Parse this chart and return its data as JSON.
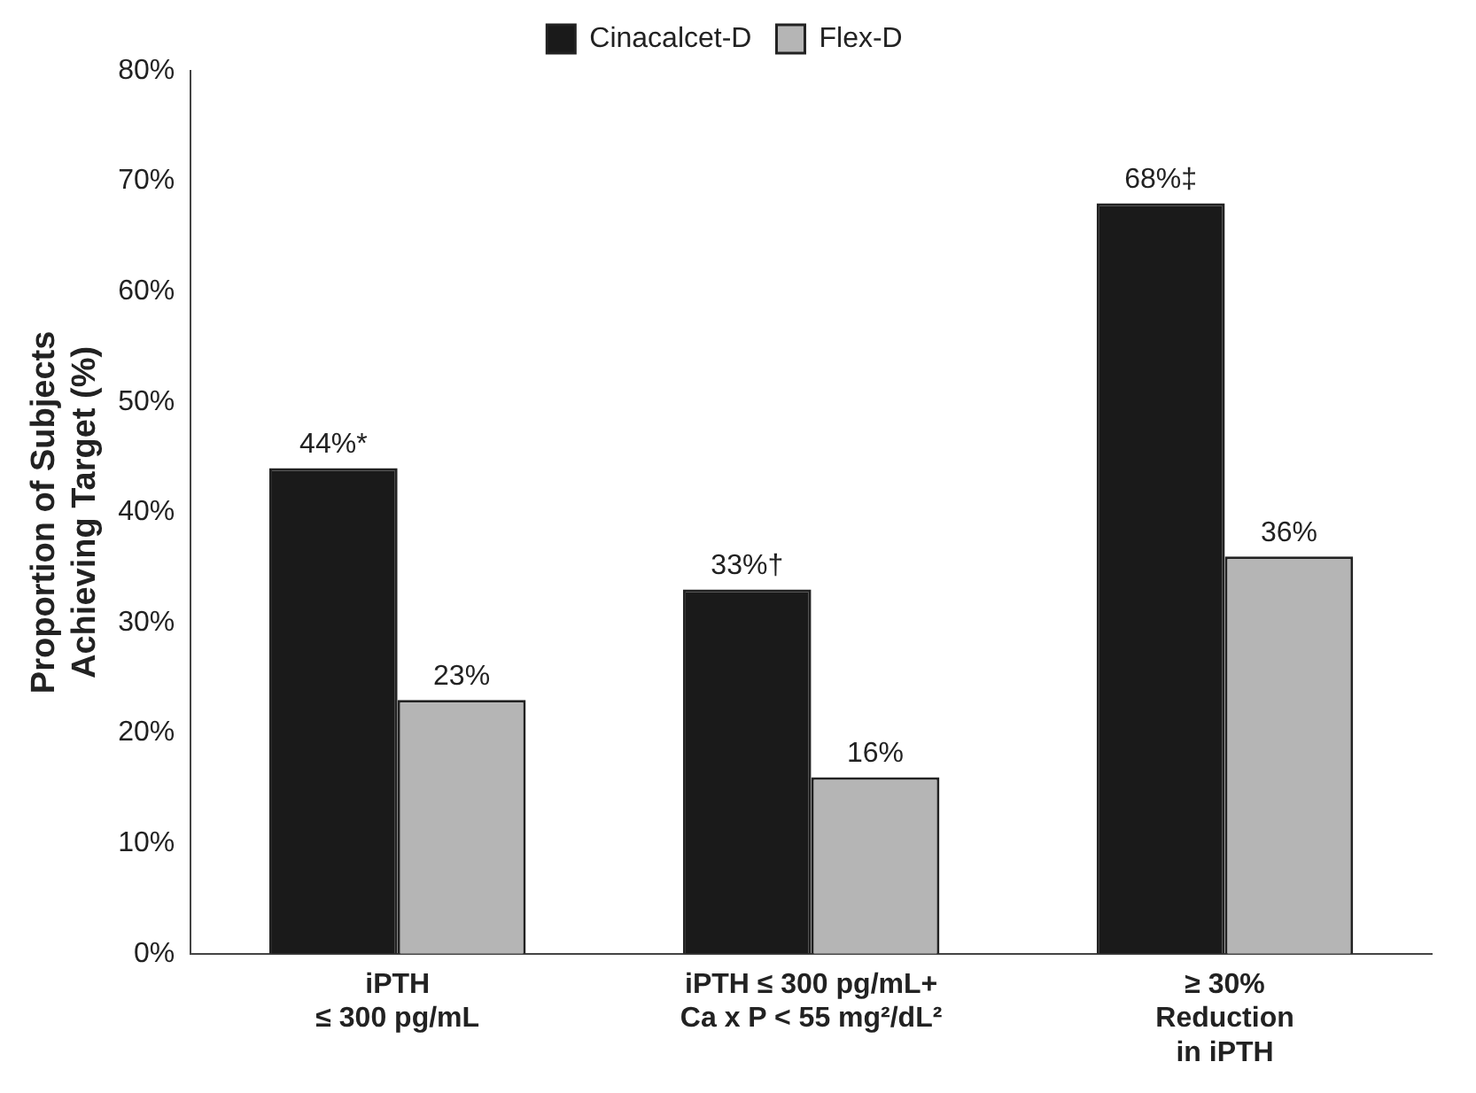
{
  "chart_data": {
    "type": "bar",
    "ylabel": "Proportion of Subjects\nAchieving Target (%)",
    "categories": [
      "iPTH\n≤ 300 pg/mL",
      "iPTH ≤ 300 pg/mL+\nCa x P < 55 mg²/dL²",
      "≥ 30%\nReduction\nin iPTH"
    ],
    "series": [
      {
        "name": "Cinacalcet-D",
        "color": "#1a1a1a",
        "values": [
          44,
          33,
          68
        ],
        "value_labels": [
          "44%*",
          "33%†",
          "68%‡"
        ]
      },
      {
        "name": "Flex-D",
        "color": "#b5b5b5",
        "values": [
          23,
          16,
          36
        ],
        "value_labels": [
          "23%",
          "16%",
          "36%"
        ]
      }
    ],
    "ylim": [
      0,
      80
    ],
    "yticks": [
      {
        "value": 0,
        "label": "0%"
      },
      {
        "value": 10,
        "label": "10%"
      },
      {
        "value": 20,
        "label": "20%"
      },
      {
        "value": 30,
        "label": "30%"
      },
      {
        "value": 40,
        "label": "40%"
      },
      {
        "value": 50,
        "label": "50%"
      },
      {
        "value": 60,
        "label": "60%"
      },
      {
        "value": 70,
        "label": "70%"
      },
      {
        "value": 80,
        "label": "80%"
      }
    ],
    "grid": false,
    "legend": "top"
  }
}
